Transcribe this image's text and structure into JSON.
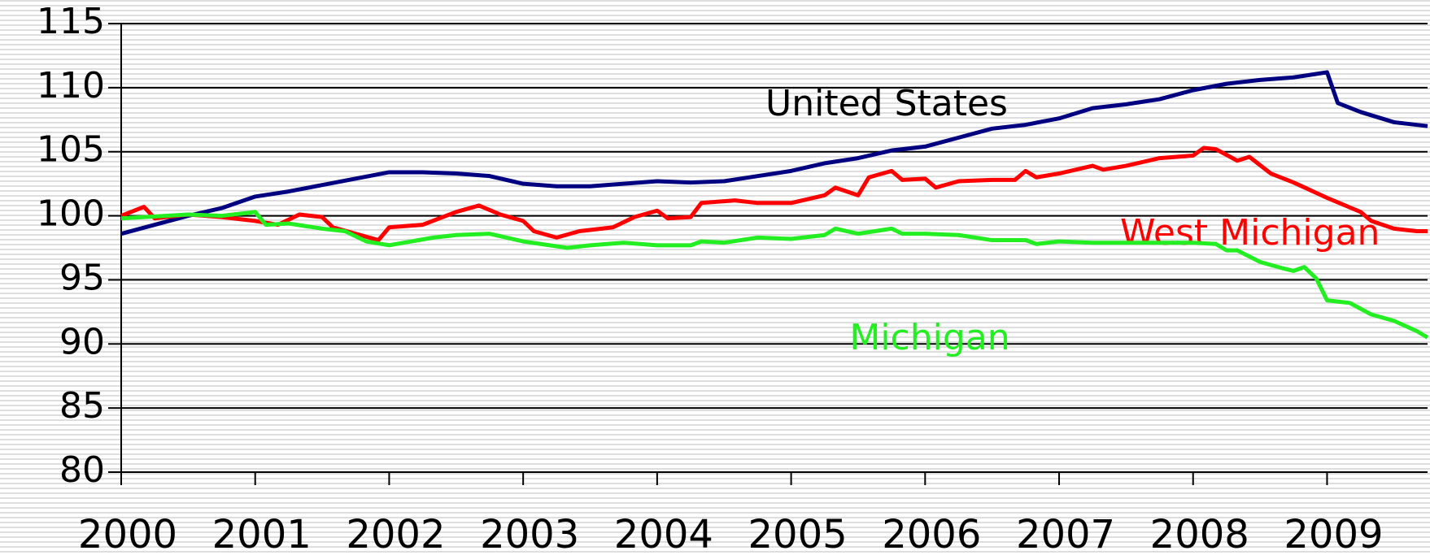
{
  "chart_data": {
    "type": "line",
    "series": [
      {
        "name": "United States",
        "color": "#000080",
        "x": [
          2000.0,
          2000.5,
          2000.75,
          2001.0,
          2001.25,
          2001.5,
          2001.75,
          2002.0,
          2002.25,
          2002.5,
          2002.75,
          2003.0,
          2003.25,
          2003.5,
          2003.75,
          2004.0,
          2004.25,
          2004.5,
          2004.75,
          2005.0,
          2005.25,
          2005.5,
          2005.75,
          2006.0,
          2006.25,
          2006.5,
          2006.75,
          2007.0,
          2007.25,
          2007.5,
          2007.75,
          2008.0,
          2008.25,
          2008.5,
          2008.75,
          2009.0,
          2009.08,
          2009.25,
          2009.5,
          2009.75
        ],
        "values": [
          98.6,
          100.0,
          100.6,
          101.5,
          101.9,
          102.4,
          102.9,
          103.4,
          103.4,
          103.3,
          103.1,
          102.5,
          102.3,
          102.3,
          102.5,
          102.7,
          102.6,
          102.7,
          103.1,
          103.5,
          104.1,
          104.5,
          105.1,
          105.4,
          106.1,
          106.8,
          107.1,
          107.6,
          108.4,
          108.7,
          109.1,
          109.8,
          110.3,
          110.6,
          110.8,
          111.2,
          108.8,
          108.1,
          107.3,
          107.0
        ]
      },
      {
        "name": "West Michigan",
        "color": "#ff0000",
        "x": [
          2000.0,
          2000.17,
          2000.25,
          2000.5,
          2000.75,
          2001.0,
          2001.17,
          2001.33,
          2001.5,
          2001.58,
          2001.75,
          2001.92,
          2002.0,
          2002.25,
          2002.5,
          2002.67,
          2002.83,
          2003.0,
          2003.08,
          2003.25,
          2003.42,
          2003.67,
          2003.83,
          2004.0,
          2004.08,
          2004.25,
          2004.33,
          2004.58,
          2004.75,
          2005.0,
          2005.25,
          2005.33,
          2005.5,
          2005.58,
          2005.75,
          2005.83,
          2006.0,
          2006.08,
          2006.25,
          2006.5,
          2006.67,
          2006.75,
          2006.83,
          2007.0,
          2007.25,
          2007.33,
          2007.5,
          2007.75,
          2008.0,
          2008.08,
          2008.17,
          2008.33,
          2008.42,
          2008.58,
          2008.75,
          2009.0,
          2009.25,
          2009.33,
          2009.5,
          2009.67,
          2009.75
        ],
        "values": [
          100.0,
          100.7,
          99.8,
          100.1,
          99.9,
          99.6,
          99.3,
          100.1,
          99.9,
          99.1,
          98.6,
          98.1,
          99.1,
          99.3,
          100.3,
          100.8,
          100.1,
          99.6,
          98.8,
          98.3,
          98.8,
          99.1,
          99.9,
          100.4,
          99.8,
          99.9,
          101.0,
          101.2,
          101.0,
          101.0,
          101.6,
          102.2,
          101.6,
          103.0,
          103.5,
          102.8,
          102.9,
          102.2,
          102.7,
          102.8,
          102.8,
          103.5,
          103.0,
          103.3,
          103.9,
          103.6,
          103.9,
          104.5,
          104.7,
          105.3,
          105.2,
          104.3,
          104.6,
          103.3,
          102.6,
          101.4,
          100.3,
          99.6,
          99.0,
          98.8,
          98.8
        ]
      },
      {
        "name": "Michigan",
        "color": "#22ee22",
        "x": [
          2000.0,
          2000.5,
          2000.75,
          2001.0,
          2001.08,
          2001.25,
          2001.5,
          2001.67,
          2001.83,
          2002.0,
          2002.33,
          2002.5,
          2002.75,
          2003.0,
          2003.33,
          2003.5,
          2003.75,
          2004.0,
          2004.25,
          2004.33,
          2004.5,
          2004.75,
          2005.0,
          2005.25,
          2005.33,
          2005.5,
          2005.75,
          2005.83,
          2006.0,
          2006.25,
          2006.5,
          2006.75,
          2006.83,
          2007.0,
          2007.25,
          2007.5,
          2007.75,
          2008.0,
          2008.17,
          2008.25,
          2008.33,
          2008.5,
          2008.67,
          2008.75,
          2008.83,
          2008.92,
          2009.0,
          2009.17,
          2009.33,
          2009.5,
          2009.67,
          2009.75
        ],
        "values": [
          99.8,
          100.1,
          100.0,
          100.3,
          99.3,
          99.4,
          99.0,
          98.8,
          98.0,
          97.7,
          98.3,
          98.5,
          98.6,
          98.0,
          97.5,
          97.7,
          97.9,
          97.7,
          97.7,
          98.0,
          97.9,
          98.3,
          98.2,
          98.5,
          99.0,
          98.6,
          99.0,
          98.6,
          98.6,
          98.5,
          98.1,
          98.1,
          97.8,
          98.0,
          97.9,
          97.9,
          97.9,
          97.9,
          97.8,
          97.3,
          97.3,
          96.4,
          95.9,
          95.7,
          96.0,
          95.1,
          93.4,
          93.2,
          92.3,
          91.8,
          91.0,
          90.5
        ]
      }
    ],
    "xlim": [
      2000,
      2009.75
    ],
    "xticks": [
      2000,
      2001,
      2002,
      2003,
      2004,
      2005,
      2006,
      2007,
      2008,
      2009
    ],
    "ylim": [
      80,
      115
    ],
    "yticks": [
      80,
      85,
      90,
      95,
      100,
      105,
      110,
      115
    ],
    "grid": true
  }
}
